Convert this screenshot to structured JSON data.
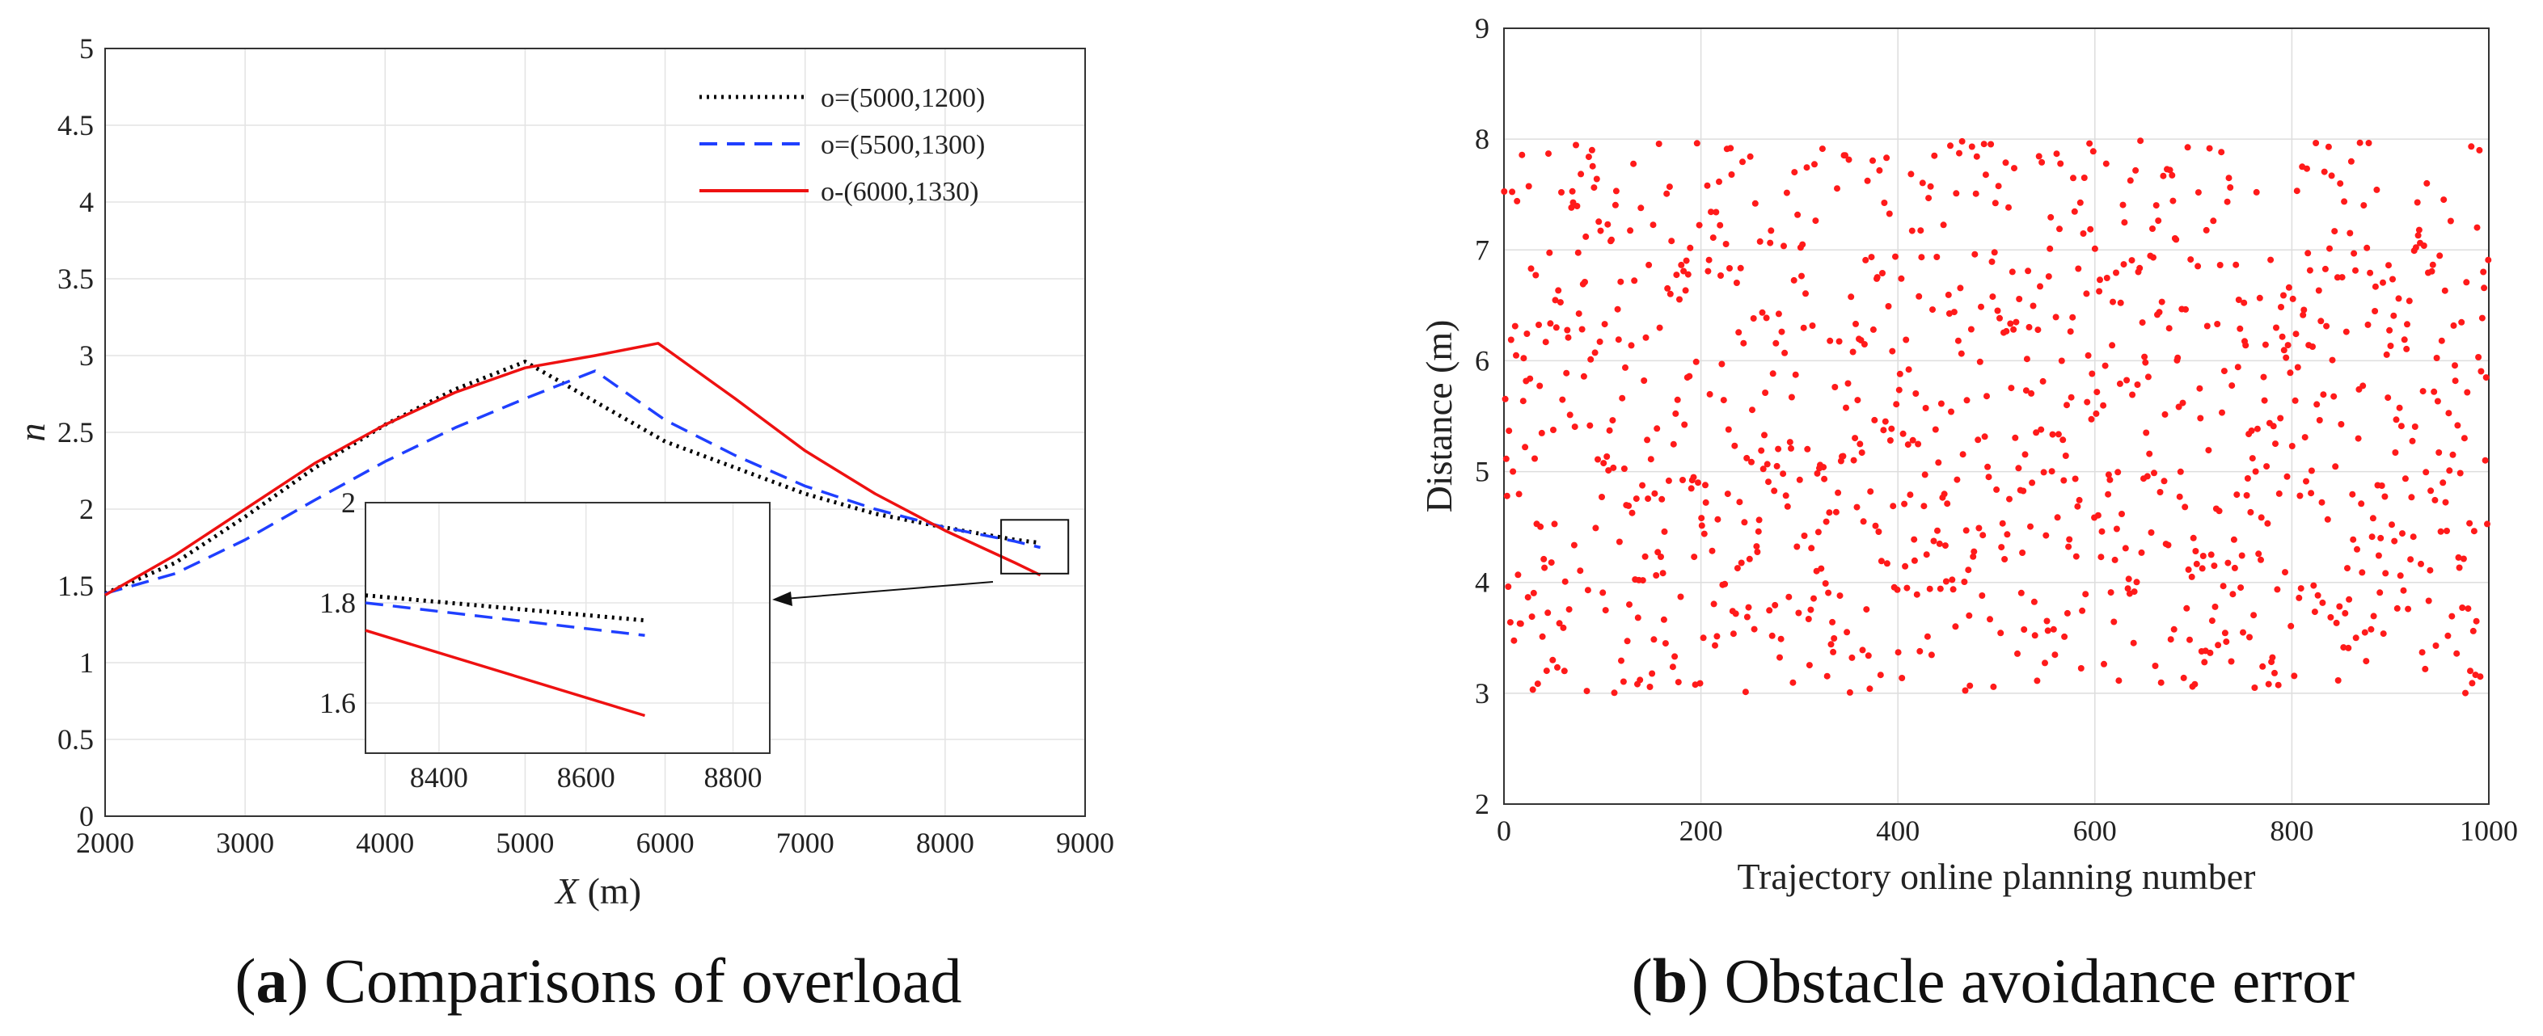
{
  "chart_data": [
    {
      "type": "line",
      "panel": "a",
      "title": "",
      "xlabel_symbol": "X",
      "xlabel_unit": " (m)",
      "ylabel": "n",
      "xlim": [
        2000,
        9000
      ],
      "ylim": [
        0,
        5
      ],
      "xticks": [
        2000,
        3000,
        4000,
        5000,
        6000,
        7000,
        8000,
        9000
      ],
      "yticks": [
        0,
        0.5,
        1,
        1.5,
        2,
        2.5,
        3,
        3.5,
        4,
        4.5,
        5
      ],
      "ytick_labels": [
        "0",
        "0.5",
        "1",
        "1.5",
        "2",
        "2.5",
        "3",
        "3.5",
        "4",
        "4.5",
        "5"
      ],
      "grid": true,
      "legend_position": "top-right",
      "series": [
        {
          "name": "o=(5000,1200)",
          "color": "#000000",
          "style": "dotted",
          "x": [
            2000,
            2500,
            3000,
            3500,
            4000,
            4500,
            5000,
            5500,
            6000,
            6500,
            7000,
            7500,
            8000,
            8500,
            8680
          ],
          "y": [
            1.45,
            1.65,
            1.95,
            2.27,
            2.55,
            2.78,
            2.96,
            2.7,
            2.44,
            2.27,
            2.1,
            1.97,
            1.88,
            1.8,
            1.78
          ]
        },
        {
          "name": "o=(5500,1300)",
          "color": "#1f3fff",
          "style": "dashed",
          "x": [
            2000,
            2500,
            3000,
            3500,
            4000,
            4500,
            5000,
            5500,
            6000,
            6500,
            7000,
            7500,
            8000,
            8500,
            8680
          ],
          "y": [
            1.45,
            1.58,
            1.8,
            2.06,
            2.31,
            2.53,
            2.72,
            2.9,
            2.58,
            2.35,
            2.15,
            2.0,
            1.88,
            1.79,
            1.75
          ]
        },
        {
          "name": "o-(6000,1330)",
          "color": "#ee1111",
          "style": "solid",
          "x": [
            2000,
            2500,
            3000,
            3500,
            4000,
            4500,
            5000,
            5500,
            5950,
            6500,
            7000,
            7500,
            8000,
            8500,
            8680
          ],
          "y": [
            1.44,
            1.7,
            2.0,
            2.3,
            2.55,
            2.76,
            2.92,
            3.0,
            3.08,
            2.72,
            2.38,
            2.1,
            1.86,
            1.65,
            1.57
          ]
        }
      ],
      "inset": {
        "xlim": [
          8300,
          8850
        ],
        "ylim": [
          1.5,
          2.0
        ],
        "xticks": [
          8400,
          8600,
          8800
        ],
        "yticks": [
          1.6,
          1.8,
          2.0
        ],
        "ytick_labels": [
          "1.6",
          "1.8",
          "2"
        ],
        "series": [
          {
            "name": "o=(5000,1200)",
            "x": [
              8300,
              8680
            ],
            "y": [
              1.815,
              1.765
            ]
          },
          {
            "name": "o=(5500,1300)",
            "x": [
              8300,
              8680
            ],
            "y": [
              1.8,
              1.735
            ]
          },
          {
            "name": "o-(6000,1330)",
            "x": [
              8300,
              8680
            ],
            "y": [
              1.745,
              1.575
            ]
          }
        ],
        "zoom_box_x": [
          8400,
          8880
        ],
        "zoom_box_y": [
          1.58,
          1.93
        ]
      }
    },
    {
      "type": "scatter",
      "panel": "b",
      "title": "",
      "xlabel": "Trajectory online planning number",
      "ylabel": "Distance (m)",
      "xlim": [
        0,
        1000
      ],
      "ylim": [
        2,
        9
      ],
      "xticks": [
        0,
        200,
        400,
        600,
        800,
        1000
      ],
      "yticks": [
        2,
        3,
        4,
        5,
        6,
        7,
        8,
        9
      ],
      "grid": true,
      "color": "#ff1a1a",
      "n_points": 1000,
      "y_range_of_points": [
        3,
        8
      ],
      "distribution": "uniform random"
    }
  ],
  "captions": {
    "a": {
      "label": "a",
      "open": "(",
      "close": ")",
      "text": " Comparisons of overload"
    },
    "b": {
      "label": "b",
      "open": "(",
      "close": ")",
      "text": " Obstacle avoidance error"
    }
  }
}
